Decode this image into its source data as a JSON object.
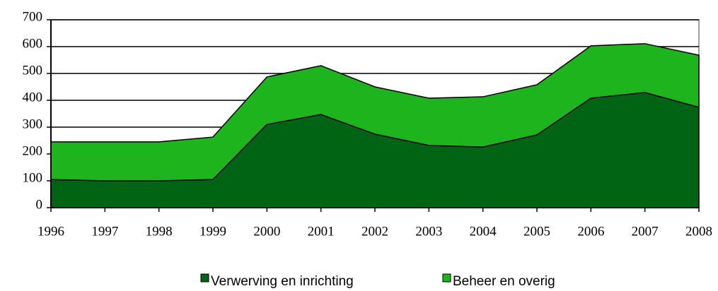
{
  "chart_data": {
    "type": "stacked_area",
    "categories": [
      "1996",
      "1997",
      "1998",
      "1999",
      "2000",
      "2001",
      "2002",
      "2003",
      "2004",
      "2005",
      "2006",
      "2007",
      "2008"
    ],
    "series": [
      {
        "name": "Verwerving en inrichting",
        "color": "#006414",
        "values": [
          105,
          100,
          100,
          105,
          310,
          347,
          274,
          232,
          226,
          271,
          408,
          429,
          374
        ]
      },
      {
        "name": "Beheer en overig",
        "color": "#1eb41e",
        "values": [
          140,
          145,
          145,
          158,
          177,
          182,
          176,
          176,
          187,
          187,
          195,
          182,
          194
        ]
      }
    ],
    "ylim": [
      0,
      700
    ],
    "yticks": [
      0,
      100,
      200,
      300,
      400,
      500,
      600,
      700
    ],
    "grid": true,
    "legend": "bottom"
  }
}
